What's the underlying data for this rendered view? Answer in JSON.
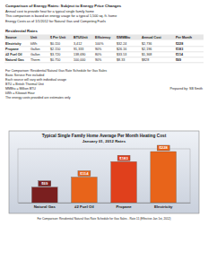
{
  "document": {
    "heading": [
      "Comparison of Energy Rates: Subject to Energy Price Changes",
      "Annual cost to provide heat for a typical single family home",
      "This comparison is based on energy usage for a typical 1,500 sq. ft. home",
      "Energy Costs as of 1/1/2012 for Natural Gas and Competing Fuels"
    ],
    "table": {
      "title": "Residential Rates",
      "header": [
        "Source",
        "Unit",
        "$ Per Unit",
        "BTU/Unit",
        "Efficiency",
        "$/MMBtu",
        "Annual Cost",
        "Per Month"
      ],
      "rows": [
        [
          "Electricity",
          "kWh",
          "$0.110",
          "3,412",
          "100%",
          "$32.24",
          "$2,736",
          "$228"
        ],
        [
          "Propane",
          "Gallon",
          "$2.150",
          "91,333",
          "90%",
          "$26.16",
          "$2,196",
          "$183"
        ],
        [
          "#2 Fuel Oil",
          "Gallon",
          "$3.720",
          "138,690",
          "80%",
          "$33.53",
          "$1,368",
          "$114"
        ],
        [
          "Natural Gas",
          "Therm",
          "$0.750",
          "100,000",
          "90%",
          "$8.33",
          "$828",
          "$69"
        ]
      ]
    },
    "notes": [
      "For Comparison: Residential Natural Gas Rate Schedule for Gas Sales",
      "Basic Service Fee included",
      "Each source will vary with individual usage",
      "BTU = British Thermal Unit",
      "MMBtu = Million BTU",
      "kWh = Kilowatt Hour",
      "The energy costs provided are estimates only"
    ],
    "prepared_by": "Prepared by: SB Smith",
    "footer": "For Comparison: Residential Natural Gas Rate Schedule for Gas Sales - Rate 11 (Effective Jan 1st, 2012)"
  },
  "chart_data": {
    "type": "bar",
    "title": "Typical Single Family Home Average Per Month Heating Cost",
    "subtitle": "January 01, 2012 Rates",
    "categories": [
      "Natural Gas",
      "#2 Fuel Oil",
      "Propane",
      "Electricity"
    ],
    "values": [
      69,
      114,
      183,
      228
    ],
    "value_labels": [
      "$69",
      "$114",
      "$183",
      "$228"
    ],
    "colors": [
      "#7a1f1f",
      "#e8641a",
      "#e0401c",
      "#e8641a"
    ],
    "ylim": [
      0,
      240
    ],
    "data_labels": true,
    "tick_labels": "x",
    "grid": false
  }
}
